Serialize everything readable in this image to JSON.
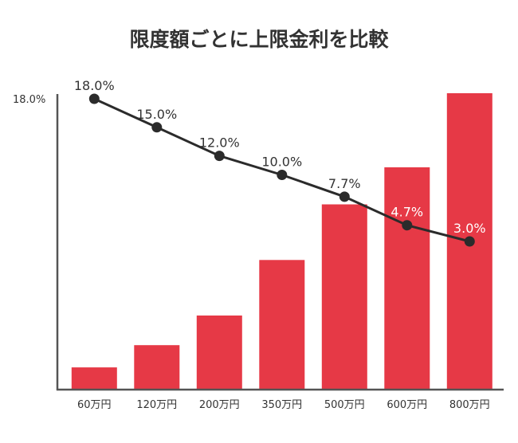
{
  "chart_data": {
    "type": "bar",
    "title": "限度額ごとに上限金利を比較",
    "categories": [
      "60万円",
      "120万円",
      "200万円",
      "350万円",
      "500万円",
      "600万円",
      "800万円"
    ],
    "series": [
      {
        "type": "bar",
        "values": [
          60,
          120,
          200,
          350,
          500,
          600,
          800
        ]
      },
      {
        "type": "line",
        "values": [
          18.0,
          15.0,
          12.0,
          10.0,
          7.7,
          4.7,
          3.0
        ],
        "labels": [
          "18.0%",
          "15.0%",
          "12.0%",
          "10.0%",
          "7.7%",
          "4.7%",
          "3.0%"
        ]
      }
    ],
    "ytick_label": "18.0%",
    "colors": {
      "bar": "#e63946",
      "line": "#2b2b2b",
      "axis": "#555555",
      "label_dark": "#333333",
      "label_light": "#ffffff"
    }
  }
}
